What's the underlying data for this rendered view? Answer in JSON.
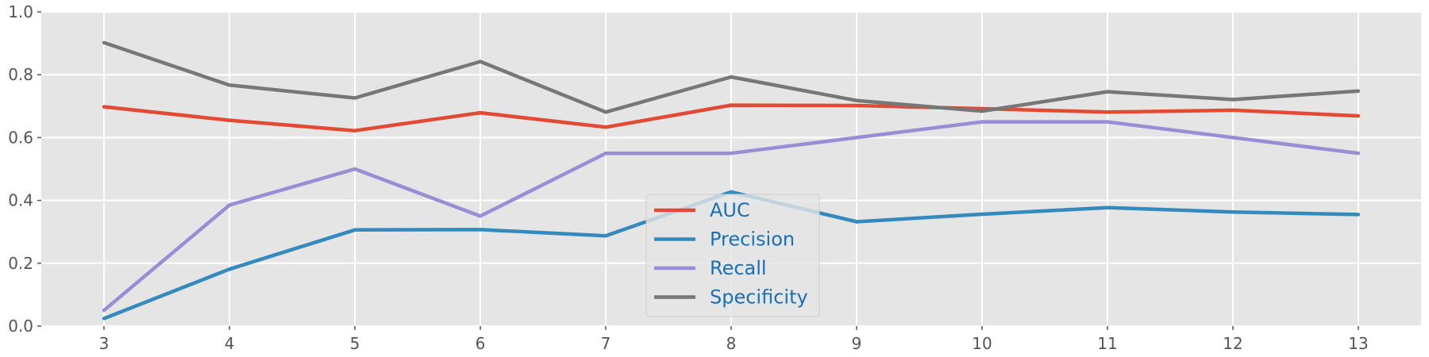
{
  "chart_data": {
    "type": "line",
    "title": "",
    "xlabel": "",
    "ylabel": "",
    "x": [
      3,
      4,
      5,
      6,
      7,
      8,
      9,
      10,
      11,
      12,
      13
    ],
    "x_ticks": [
      "3",
      "4",
      "5",
      "6",
      "7",
      "8",
      "9",
      "10",
      "11",
      "12",
      "13"
    ],
    "xlim": [
      2.5,
      13.5
    ],
    "ylim": [
      0.0,
      1.0
    ],
    "y_ticks": [
      "0.0",
      "0.2",
      "0.4",
      "0.6",
      "0.8",
      "1.0"
    ],
    "grid": true,
    "background_color": "#e5e5e5",
    "legend": {
      "placement": "lower-center",
      "entries": [
        "AUC",
        "Precision",
        "Recall",
        "Specificity"
      ]
    },
    "series": [
      {
        "name": "AUC",
        "color": "#e24a33",
        "values": [
          0.698,
          0.655,
          0.622,
          0.679,
          0.633,
          0.703,
          0.702,
          0.692,
          0.681,
          0.687,
          0.669
        ]
      },
      {
        "name": "Precision",
        "color": "#348abd",
        "values": [
          0.024,
          0.181,
          0.306,
          0.307,
          0.287,
          0.427,
          0.332,
          0.356,
          0.377,
          0.363,
          0.355
        ]
      },
      {
        "name": "Recall",
        "color": "#988ed5",
        "values": [
          0.05,
          0.385,
          0.5,
          0.35,
          0.55,
          0.55,
          0.6,
          0.65,
          0.65,
          0.6,
          0.55
        ]
      },
      {
        "name": "Specificity",
        "color": "#777777",
        "values": [
          0.902,
          0.767,
          0.726,
          0.842,
          0.681,
          0.793,
          0.718,
          0.684,
          0.746,
          0.721,
          0.748
        ]
      }
    ]
  }
}
